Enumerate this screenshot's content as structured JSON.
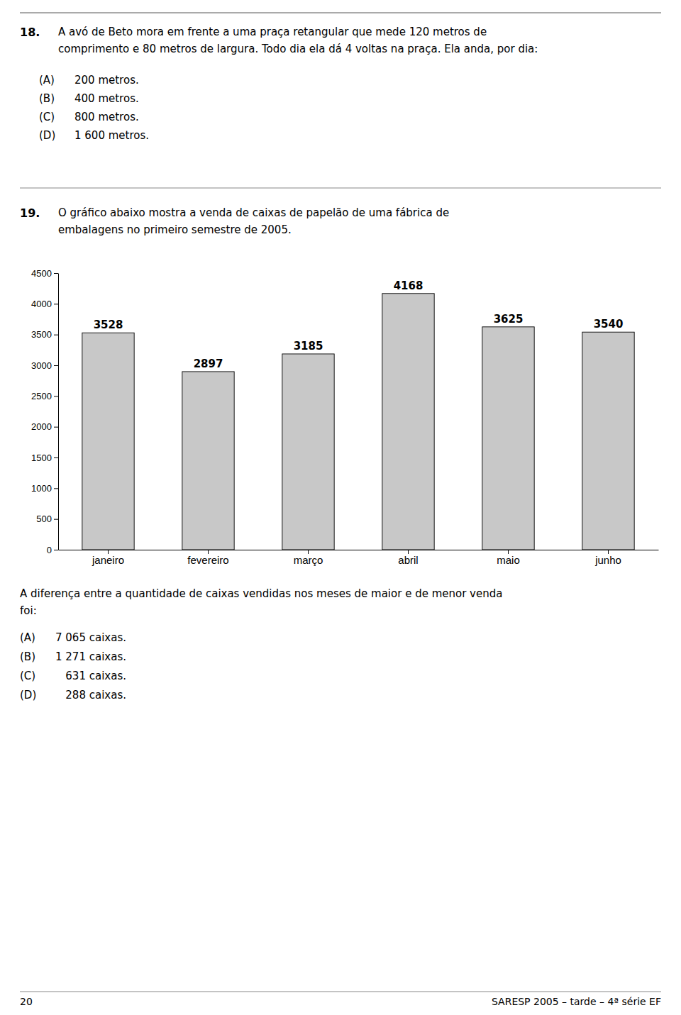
{
  "page": {
    "page_number": "20",
    "footer_text": "SARESP 2005 – tarde – 4ª série EF",
    "q18_label": "18.",
    "q18_line1": "A avó de Beto mora em frente a uma praça retangular que mede 120 metros de",
    "q18_line2": "comprimento e 80 metros de largura. Todo dia ela dá 4 voltas na praça. Ela anda, por dia:",
    "q18_opts": [
      "(A)",
      "(B)",
      "(C)",
      "(D)"
    ],
    "q18_opt_vals": [
      "200 metros.",
      "400 metros.",
      "800 metros.",
      "1 600 metros."
    ],
    "q19_label": "19.",
    "q19_line1": "O gráfico abaixo mostra a venda de caixas de papelão de uma fábrica de",
    "q19_line2": "embalagens no primeiro semestre de 2005.",
    "ans_line1": "A diferença entre a quantidade de caixas vendidas nos meses de maior e de menor venda",
    "ans_line2": "foi:",
    "q19_opts": [
      "(A)",
      "(B)",
      "(C)",
      "(D)"
    ],
    "q19_opt_vals": [
      "7 065 caixas.",
      "1 271 caixas.",
      "   631 caixas.",
      "   288 caixas."
    ]
  },
  "chart_data": {
    "type": "bar",
    "categories": [
      "janeiro",
      "fevereiro",
      "março",
      "abril",
      "maio",
      "junho"
    ],
    "values": [
      3528,
      2897,
      3185,
      4168,
      3625,
      3540
    ],
    "color": "#c8c8c8",
    "ylim": [
      0,
      4500
    ],
    "yticks": [
      0,
      500,
      1000,
      1500,
      2000,
      2500,
      3000,
      3500,
      4000,
      4500
    ],
    "grid": false,
    "data_labels": true
  }
}
